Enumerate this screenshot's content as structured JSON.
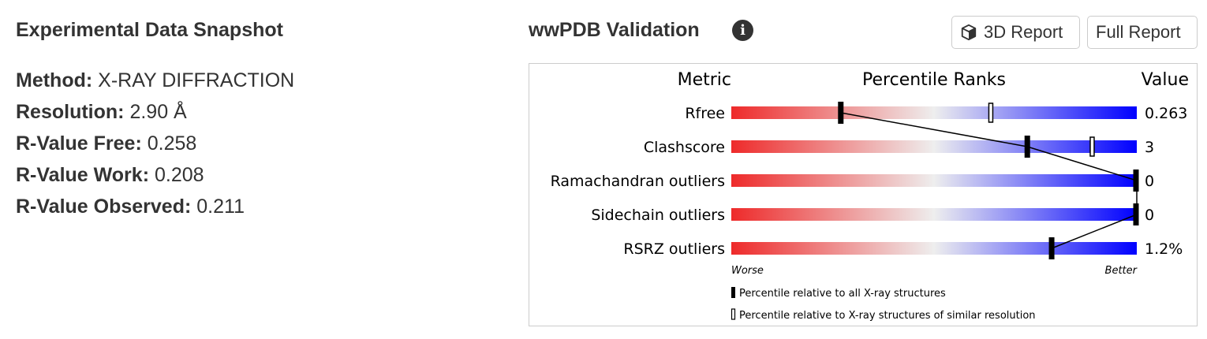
{
  "snapshot": {
    "title": "Experimental Data Snapshot",
    "facts": [
      {
        "label": "Method:",
        "value": "X-RAY DIFFRACTION"
      },
      {
        "label": "Resolution:",
        "value": "2.90 Å"
      },
      {
        "label": "R-Value Free:",
        "value": "0.258"
      },
      {
        "label": "R-Value Work:",
        "value": "0.208"
      },
      {
        "label": "R-Value Observed:",
        "value": "0.211"
      }
    ]
  },
  "validation": {
    "title": "wwPDB Validation",
    "info_icon": "info-circle-icon",
    "buttons": {
      "report_3d": {
        "label": "3D Report",
        "icon": "cube-icon"
      },
      "full_report": {
        "label": "Full Report"
      }
    },
    "headers": {
      "metric": "Metric",
      "percentile": "Percentile Ranks",
      "value": "Value"
    },
    "axis_labels": {
      "worse": "Worse",
      "better": "Better"
    },
    "legend": {
      "all": "Percentile relative to all X-ray structures",
      "similar": "Percentile relative to X-ray structures of similar resolution"
    },
    "colors": {
      "worse": "#ee2a2a",
      "middle": "#eeeeee",
      "better": "#0000ff"
    }
  },
  "chart_data": {
    "type": "percentile-slider",
    "range": [
      0,
      100
    ],
    "metrics": [
      {
        "name": "Rfree",
        "value": "0.263",
        "all_percentile": 27,
        "similar_percentile": 64
      },
      {
        "name": "Clashscore",
        "value": "3",
        "all_percentile": 73,
        "similar_percentile": 89
      },
      {
        "name": "Ramachandran outliers",
        "value": "0",
        "all_percentile": 100,
        "similar_percentile": null
      },
      {
        "name": "Sidechain outliers",
        "value": "0",
        "all_percentile": 100,
        "similar_percentile": null
      },
      {
        "name": "RSRZ outliers",
        "value": "1.2%",
        "all_percentile": 79,
        "similar_percentile": null
      }
    ]
  }
}
